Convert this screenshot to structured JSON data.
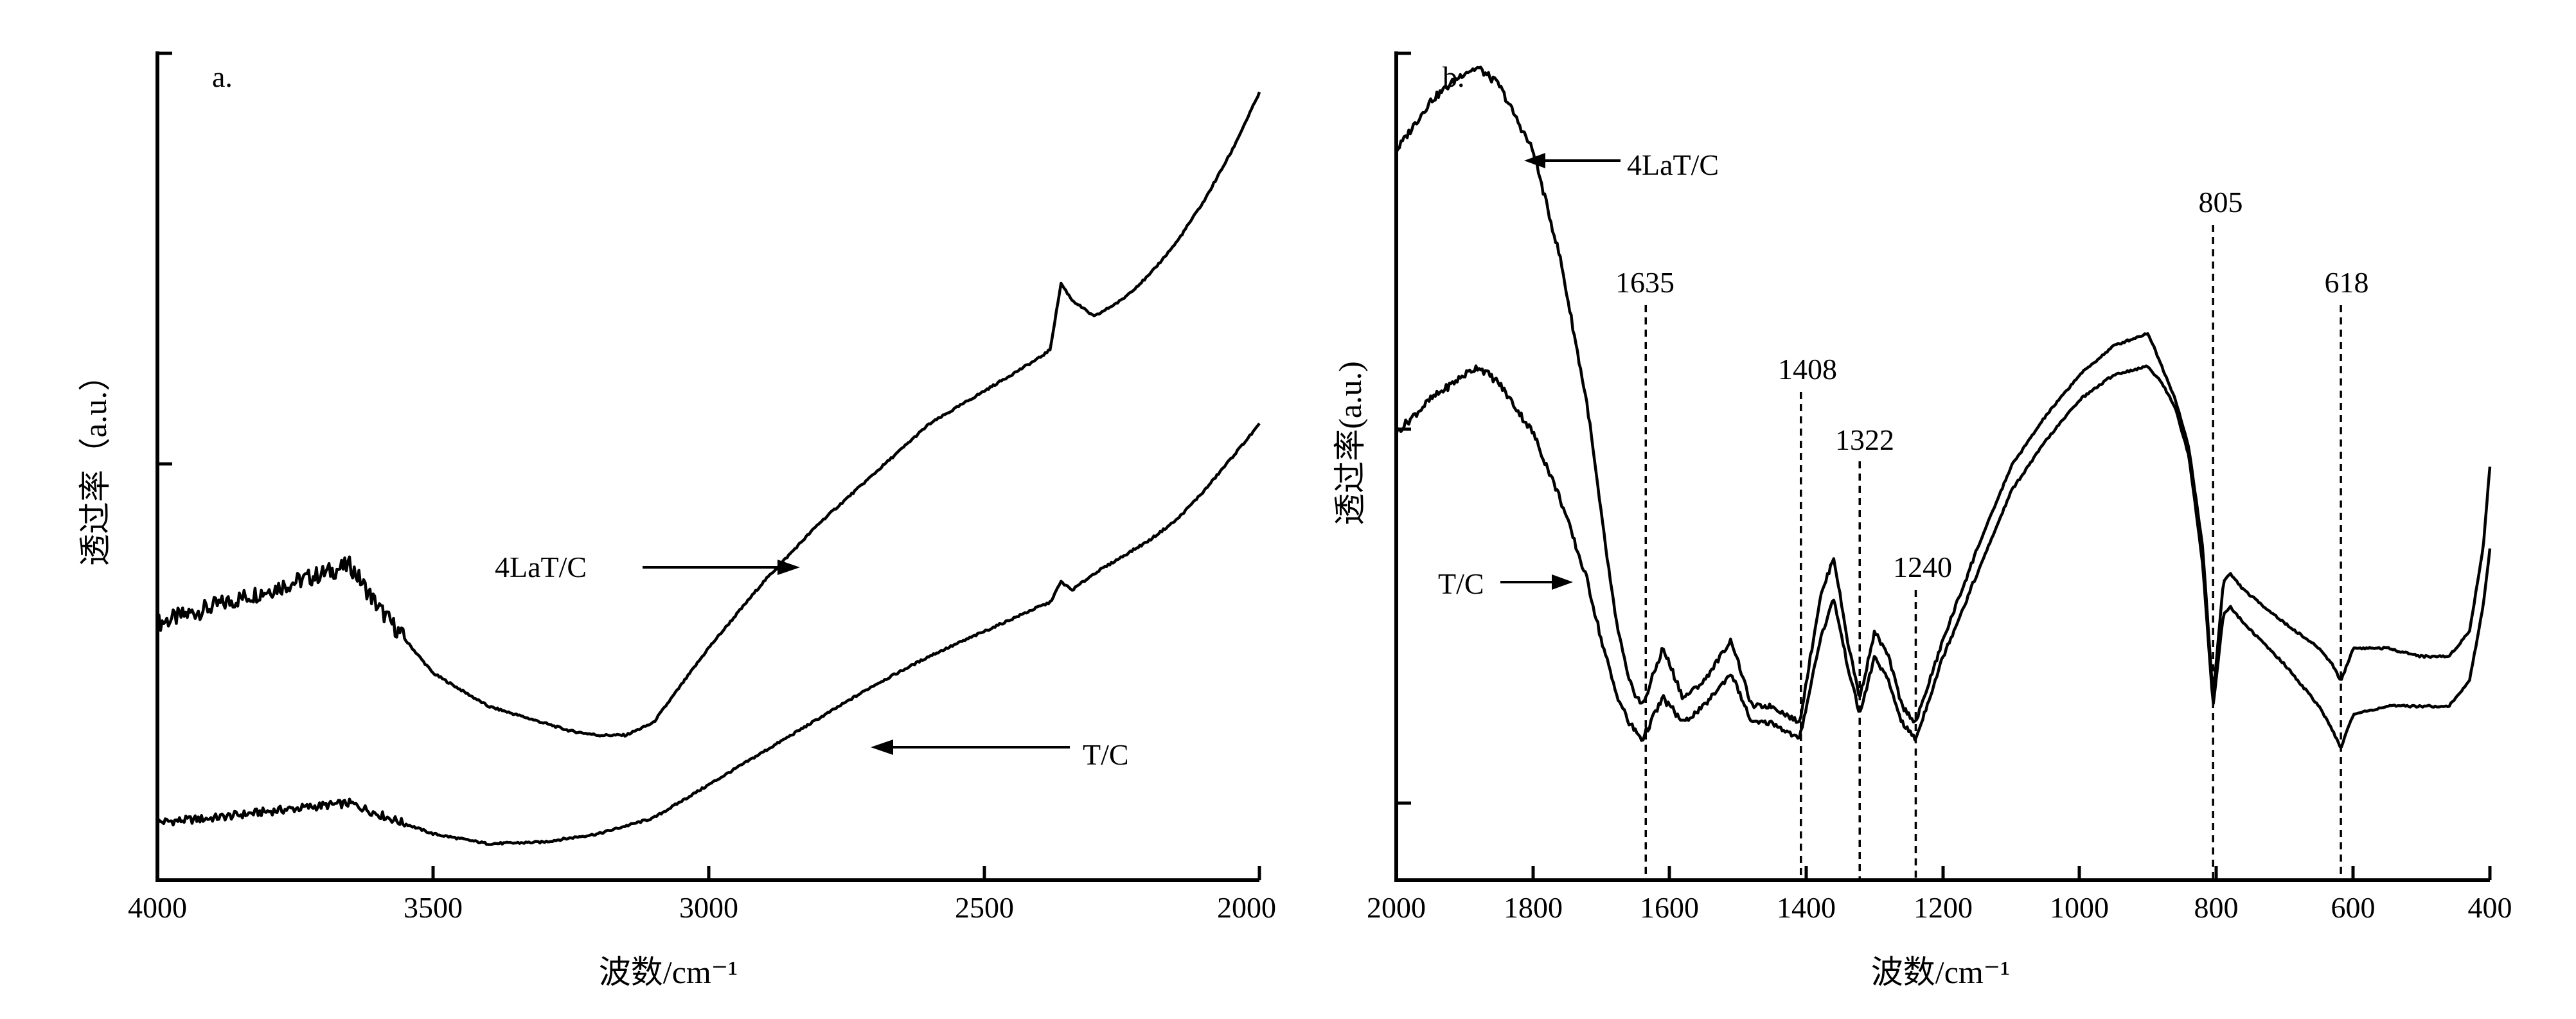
{
  "chart_data": [
    {
      "panel": "a.",
      "type": "line",
      "xlabel": "波数/cm⁻¹",
      "ylabel": "透过率（a.u.）",
      "xlim": [
        4000,
        2000
      ],
      "x_reversed": true,
      "xticks": [
        4000,
        3500,
        3000,
        2500,
        2000
      ],
      "ylim": [
        0,
        100
      ],
      "yticks_unlabeled": [
        0,
        50,
        100
      ],
      "grid": false,
      "series": [
        {
          "name": "4LaT/C",
          "x": [
            4000,
            3900,
            3800,
            3700,
            3650,
            3600,
            3500,
            3400,
            3300,
            3250,
            3200,
            3150,
            3100,
            3000,
            2900,
            2800,
            2700,
            2600,
            2500,
            2400,
            2380,
            2360,
            2340,
            2300,
            2250,
            2200,
            2150,
            2100,
            2050,
            2000
          ],
          "y": [
            31,
            33,
            35,
            37,
            38,
            33,
            25,
            21,
            19,
            18,
            17.5,
            17.5,
            19,
            28,
            36,
            43,
            49,
            55,
            59,
            63,
            64,
            72,
            70,
            68,
            70,
            73,
            77,
            82,
            88,
            95
          ]
        },
        {
          "name": "T/C",
          "x": [
            4000,
            3900,
            3800,
            3700,
            3650,
            3600,
            3500,
            3400,
            3300,
            3200,
            3100,
            3000,
            2900,
            2800,
            2700,
            2600,
            2500,
            2400,
            2380,
            2360,
            2340,
            2300,
            2250,
            2200,
            2150,
            2100,
            2050,
            2000
          ],
          "y": [
            7,
            7.5,
            8.3,
            9,
            9.3,
            8,
            5.6,
            4.4,
            4.6,
            5.6,
            7.5,
            11.5,
            15.5,
            19.5,
            23.5,
            27,
            30,
            33,
            33.5,
            36,
            35,
            37,
            39,
            41,
            43.5,
            47,
            51,
            55
          ]
        }
      ],
      "annotations": [
        "4LaT/C",
        "T/C"
      ]
    },
    {
      "panel": "b.",
      "type": "line",
      "xlabel": "波数/cm⁻¹",
      "ylabel": "透过率(a.u.)",
      "xlim": [
        2000,
        400
      ],
      "x_reversed": true,
      "xticks": [
        2000,
        1800,
        1600,
        1400,
        1200,
        1000,
        800,
        600,
        400
      ],
      "ylim": [
        0,
        100
      ],
      "yticks_unlabeled": [
        0,
        50,
        100
      ],
      "grid": false,
      "series": [
        {
          "name": "4LaT/C",
          "x": [
            2000,
            1950,
            1900,
            1880,
            1850,
            1800,
            1760,
            1720,
            1700,
            1680,
            1660,
            1640,
            1610,
            1580,
            1550,
            1510,
            1480,
            1450,
            1410,
            1380,
            1360,
            1340,
            1322,
            1300,
            1280,
            1260,
            1240,
            1220,
            1200,
            1150,
            1100,
            1050,
            1000,
            950,
            900,
            880,
            860,
            840,
            820,
            805,
            790,
            780,
            760,
            700,
            650,
            630,
            618,
            600,
            550,
            500,
            460,
            430,
            410,
            400
          ],
          "y": [
            88,
            94,
            97.5,
            98,
            96,
            88,
            75,
            57,
            44,
            32,
            24,
            21,
            28,
            22,
            24,
            29,
            21,
            21,
            19,
            34,
            39,
            29,
            22,
            30,
            27,
            21,
            19,
            24,
            29,
            40,
            50,
            56,
            61,
            64.5,
            66,
            62,
            58,
            52,
            40,
            22,
            36,
            37,
            35,
            31,
            28,
            26,
            24,
            28,
            28,
            27,
            27,
            30,
            40,
            50
          ]
        },
        {
          "name": "T/C",
          "x": [
            2000,
            1950,
            1900,
            1880,
            1850,
            1800,
            1760,
            1720,
            1700,
            1680,
            1660,
            1640,
            1610,
            1580,
            1550,
            1510,
            1480,
            1450,
            1410,
            1380,
            1360,
            1340,
            1322,
            1300,
            1280,
            1260,
            1240,
            1220,
            1200,
            1150,
            1100,
            1050,
            1000,
            950,
            900,
            880,
            860,
            840,
            820,
            805,
            790,
            780,
            760,
            700,
            650,
            630,
            618,
            600,
            550,
            500,
            460,
            430,
            410,
            400
          ],
          "y": [
            54,
            58,
            61,
            62,
            60,
            54,
            46,
            36,
            29,
            23,
            19,
            17,
            22,
            19,
            21,
            25,
            19,
            19,
            17,
            29,
            34,
            26,
            20,
            27,
            24,
            19,
            17,
            22,
            27,
            37,
            47,
            53,
            58,
            61,
            62,
            60,
            57,
            51,
            38,
            21,
            32,
            33,
            31,
            26,
            21,
            18,
            16,
            20,
            21,
            21,
            21,
            24,
            33,
            40
          ]
        }
      ],
      "annotations": [
        "4LaT/C",
        "T/C",
        "1635",
        "1408",
        "1322",
        "1240",
        "805",
        "618"
      ],
      "reference_lines": [
        1635,
        1408,
        1322,
        1240,
        805,
        618
      ]
    }
  ],
  "panels": {
    "a": {
      "letter": "a.",
      "xlabel": "波数/cm⁻¹",
      "ylabel": "透过率（a.u.）",
      "xticks": [
        "4000",
        "3500",
        "3000",
        "2500",
        "2000"
      ],
      "label_4lat": "4LaT/C",
      "label_tc": "T/C"
    },
    "b": {
      "letter": "b.",
      "xlabel": "波数/cm⁻¹",
      "ylabel": "透过率(a.u.)",
      "xticks": [
        "2000",
        "1800",
        "1600",
        "1400",
        "1200",
        "1000",
        "800",
        "600",
        "400"
      ],
      "label_4lat": "4LaT/C",
      "label_tc": "T/C",
      "peaks": [
        "1635",
        "1408",
        "1322",
        "1240",
        "805",
        "618"
      ]
    }
  }
}
